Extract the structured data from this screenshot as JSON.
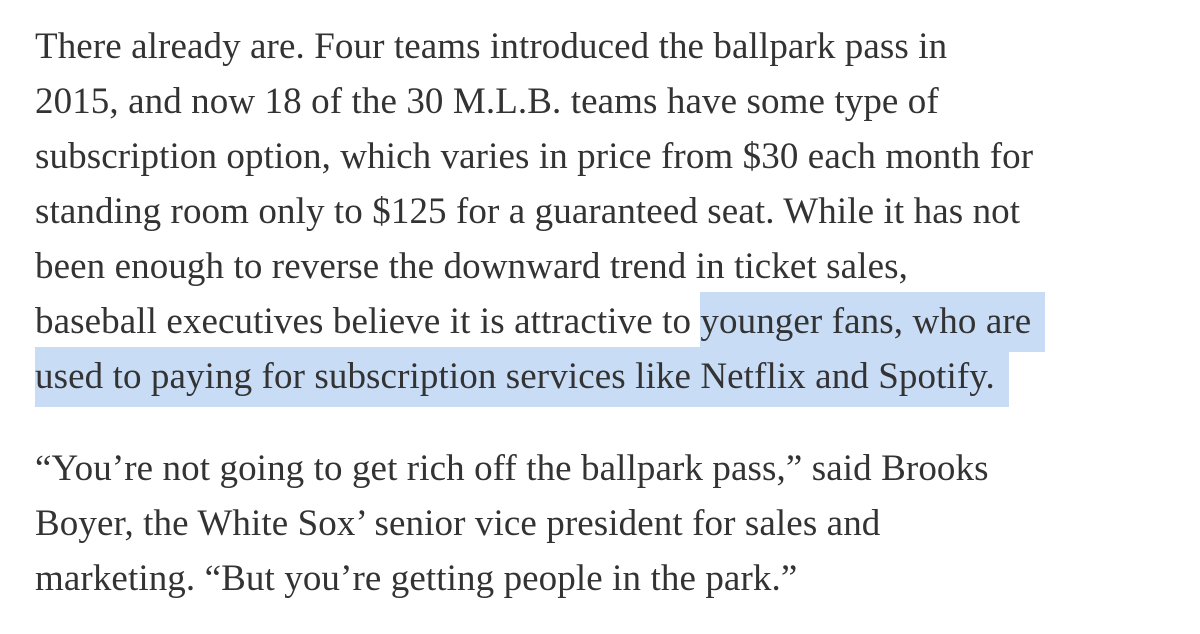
{
  "style": {
    "background": "#ffffff",
    "text_color": "#333333",
    "highlight_color": "#c8dcf5"
  },
  "article": {
    "highlighted_passage": "younger fans, who are used to paying for subscription services like Netflix and Spotify.",
    "paragraphs": [
      {
        "name": "paragraph-1",
        "lines": [
          [
            {
              "t": "There already are. Four teams introduced the ballpark pass in",
              "h": false
            }
          ],
          [
            {
              "t": "2015, and now 18 of the 30 M.L.B. teams have some type of",
              "h": false
            }
          ],
          [
            {
              "t": "subscription option, which varies in price from $30 each month for",
              "h": false
            }
          ],
          [
            {
              "t": "standing room only to $125 for a guaranteed seat. While it has not",
              "h": false
            }
          ],
          [
            {
              "t": "been enough to reverse the downward trend in ticket sales,",
              "h": false
            }
          ],
          [
            {
              "t": "baseball executives believe it is attractive to ",
              "h": false
            },
            {
              "t": "younger fans, who are",
              "h": true
            }
          ],
          [
            {
              "t": "used to paying for subscription services like Netflix and Spotify.",
              "h": true
            }
          ]
        ]
      },
      {
        "name": "paragraph-2",
        "lines": [
          [
            {
              "t": "“You’re not going to get rich off the ballpark pass,” said Brooks",
              "h": false
            }
          ],
          [
            {
              "t": "Boyer, the White Sox’ senior vice president for sales and",
              "h": false
            }
          ],
          [
            {
              "t": "marketing. “But you’re getting people in the park.”",
              "h": false
            }
          ]
        ]
      }
    ]
  }
}
